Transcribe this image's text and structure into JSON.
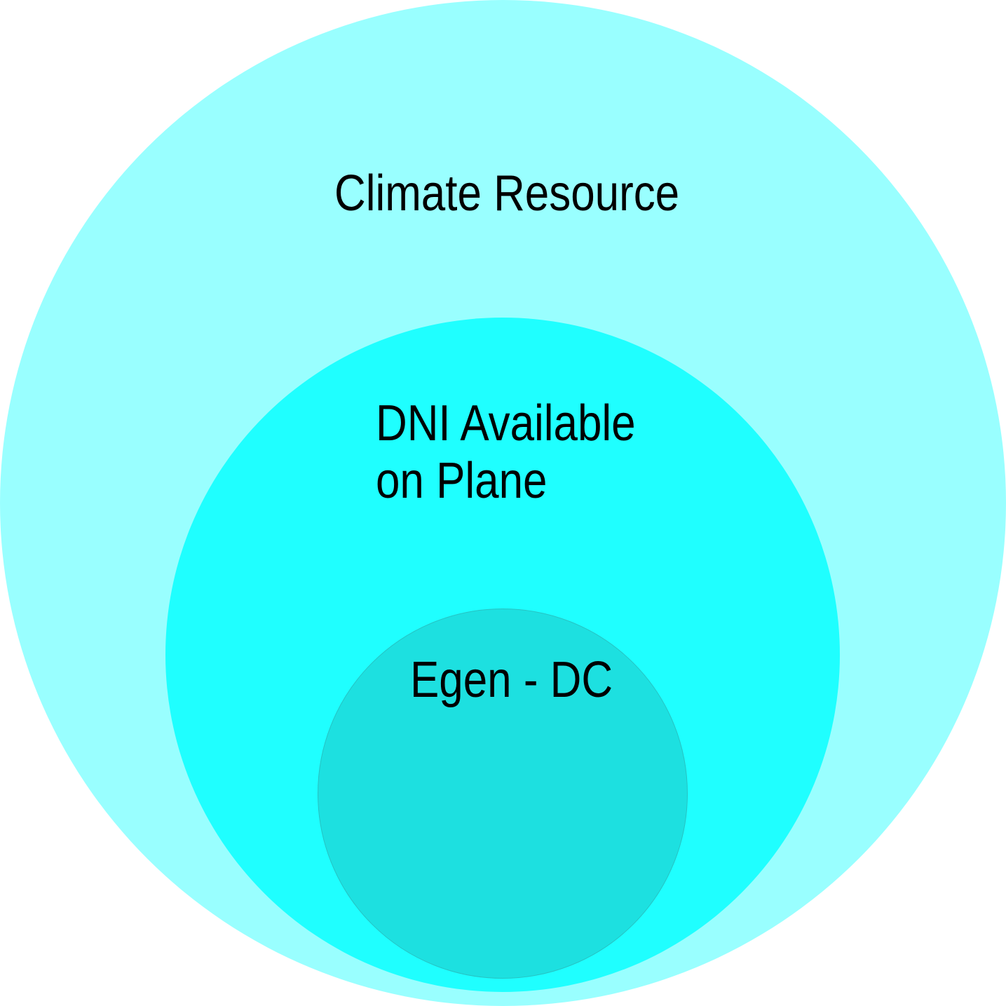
{
  "diagram": {
    "outer": {
      "label": "Climate Resource",
      "color": "#99ffff"
    },
    "middle": {
      "label_line1": "DNI Available",
      "label_line2": "on Plane",
      "color": "#1fffff"
    },
    "inner": {
      "label": "Egen - DC",
      "color": "#1de0e0"
    }
  }
}
